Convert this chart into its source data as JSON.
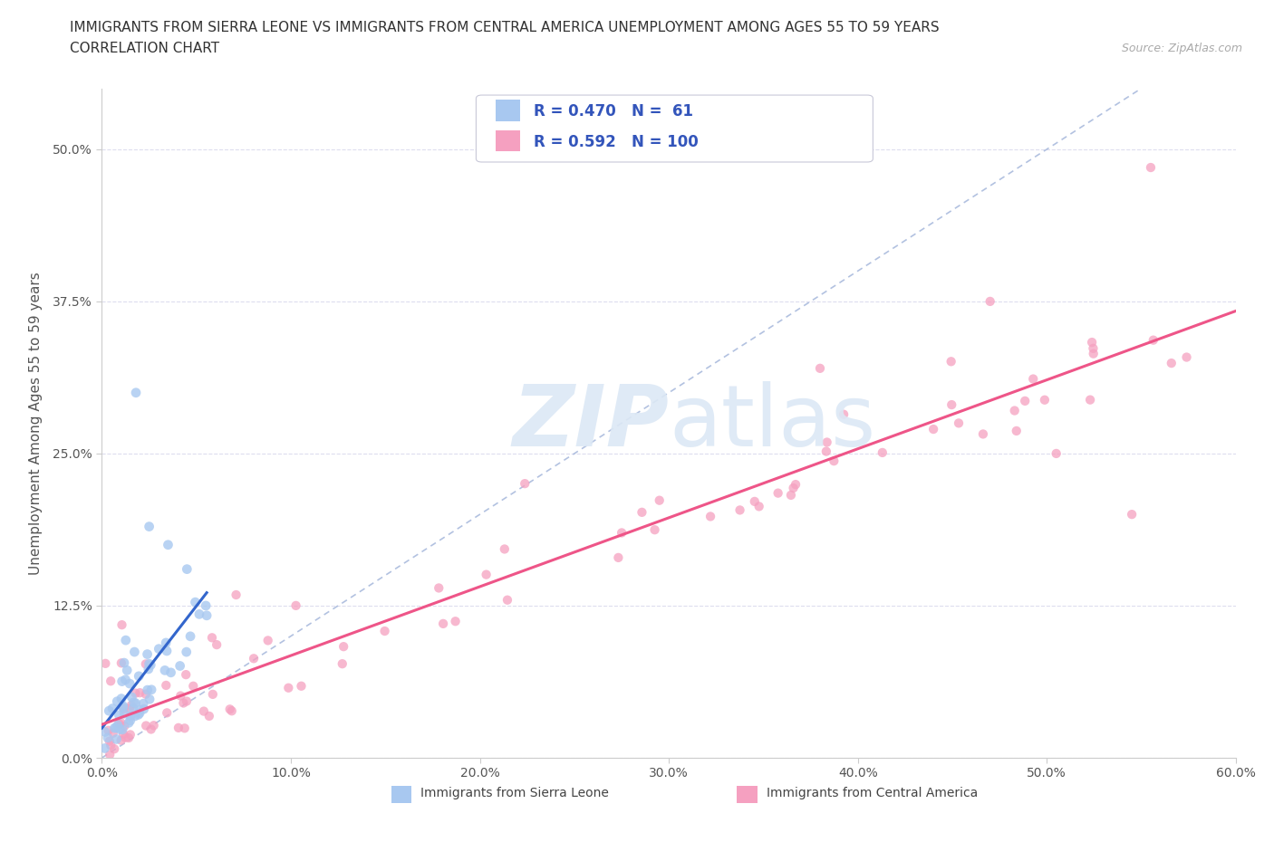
{
  "title_line1": "IMMIGRANTS FROM SIERRA LEONE VS IMMIGRANTS FROM CENTRAL AMERICA UNEMPLOYMENT AMONG AGES 55 TO 59 YEARS",
  "title_line2": "CORRELATION CHART",
  "source": "Source: ZipAtlas.com",
  "ylabel": "Unemployment Among Ages 55 to 59 years",
  "legend_label1": "Immigrants from Sierra Leone",
  "legend_label2": "Immigrants from Central America",
  "R1": 0.47,
  "N1": 61,
  "R2": 0.592,
  "N2": 100,
  "color1": "#a8c8f0",
  "color2": "#f5a0c0",
  "trendline1_color": "#3366cc",
  "trendline2_color": "#ee5588",
  "dashed_line_color": "#aabbdd",
  "xlim": [
    0.0,
    0.6
  ],
  "ylim": [
    0.0,
    0.55
  ],
  "xticks": [
    0.0,
    0.1,
    0.2,
    0.3,
    0.4,
    0.5,
    0.6
  ],
  "yticks": [
    0.0,
    0.125,
    0.25,
    0.375,
    0.5
  ],
  "xticklabels": [
    "0.0%",
    "10.0%",
    "20.0%",
    "30.0%",
    "40.0%",
    "50.0%",
    "60.0%"
  ],
  "yticklabels": [
    "0.0%",
    "12.5%",
    "25.0%",
    "37.5%",
    "50.0%"
  ],
  "background_color": "#ffffff",
  "grid_color": "#ddddee",
  "watermark_color": "#dce8f5"
}
